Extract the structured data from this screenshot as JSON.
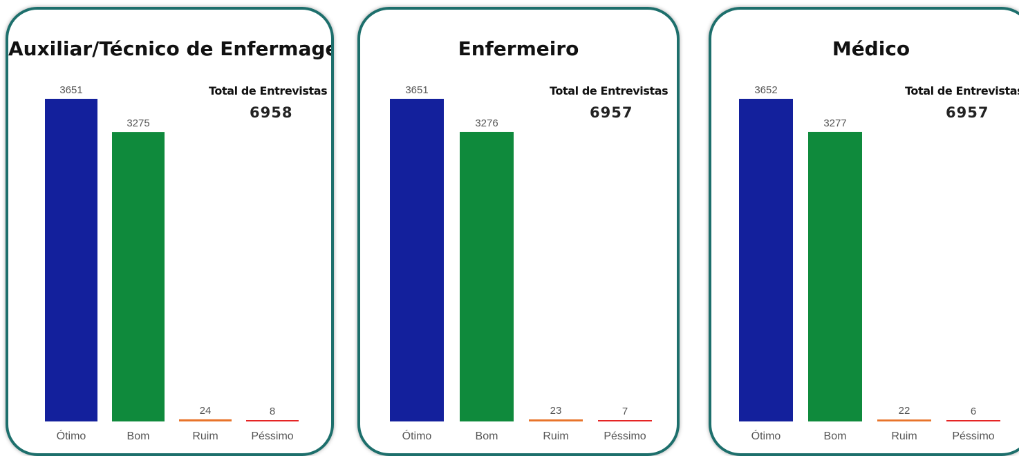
{
  "colors": {
    "otimo": "#13209c",
    "bom": "#0f8a3c",
    "ruim": "#e8742a",
    "pessimo": "#e52525",
    "card_border": "#1d6f6c"
  },
  "chart_data": [
    {
      "type": "bar",
      "title": "Auxiliar/Técnico de Enfermagem",
      "categories": [
        "Ótimo",
        "Bom",
        "Ruim",
        "Péssimo"
      ],
      "values": [
        3651,
        3275,
        24,
        8
      ],
      "ylim": [
        0,
        3651
      ],
      "grid": false,
      "total_label": "Total de Entrevistas",
      "total_value": "6958"
    },
    {
      "type": "bar",
      "title": "Enfermeiro",
      "categories": [
        "Ótimo",
        "Bom",
        "Ruim",
        "Péssimo"
      ],
      "values": [
        3651,
        3276,
        23,
        7
      ],
      "ylim": [
        0,
        3651
      ],
      "grid": false,
      "total_label": "Total de Entrevistas",
      "total_value": "6957"
    },
    {
      "type": "bar",
      "title": "Médico",
      "categories": [
        "Ótimo",
        "Bom",
        "Ruim",
        "Péssimo"
      ],
      "values": [
        3652,
        3277,
        22,
        6
      ],
      "ylim": [
        0,
        3652
      ],
      "grid": false,
      "total_label": "Total de Entrevistas",
      "total_value": "6957"
    }
  ]
}
